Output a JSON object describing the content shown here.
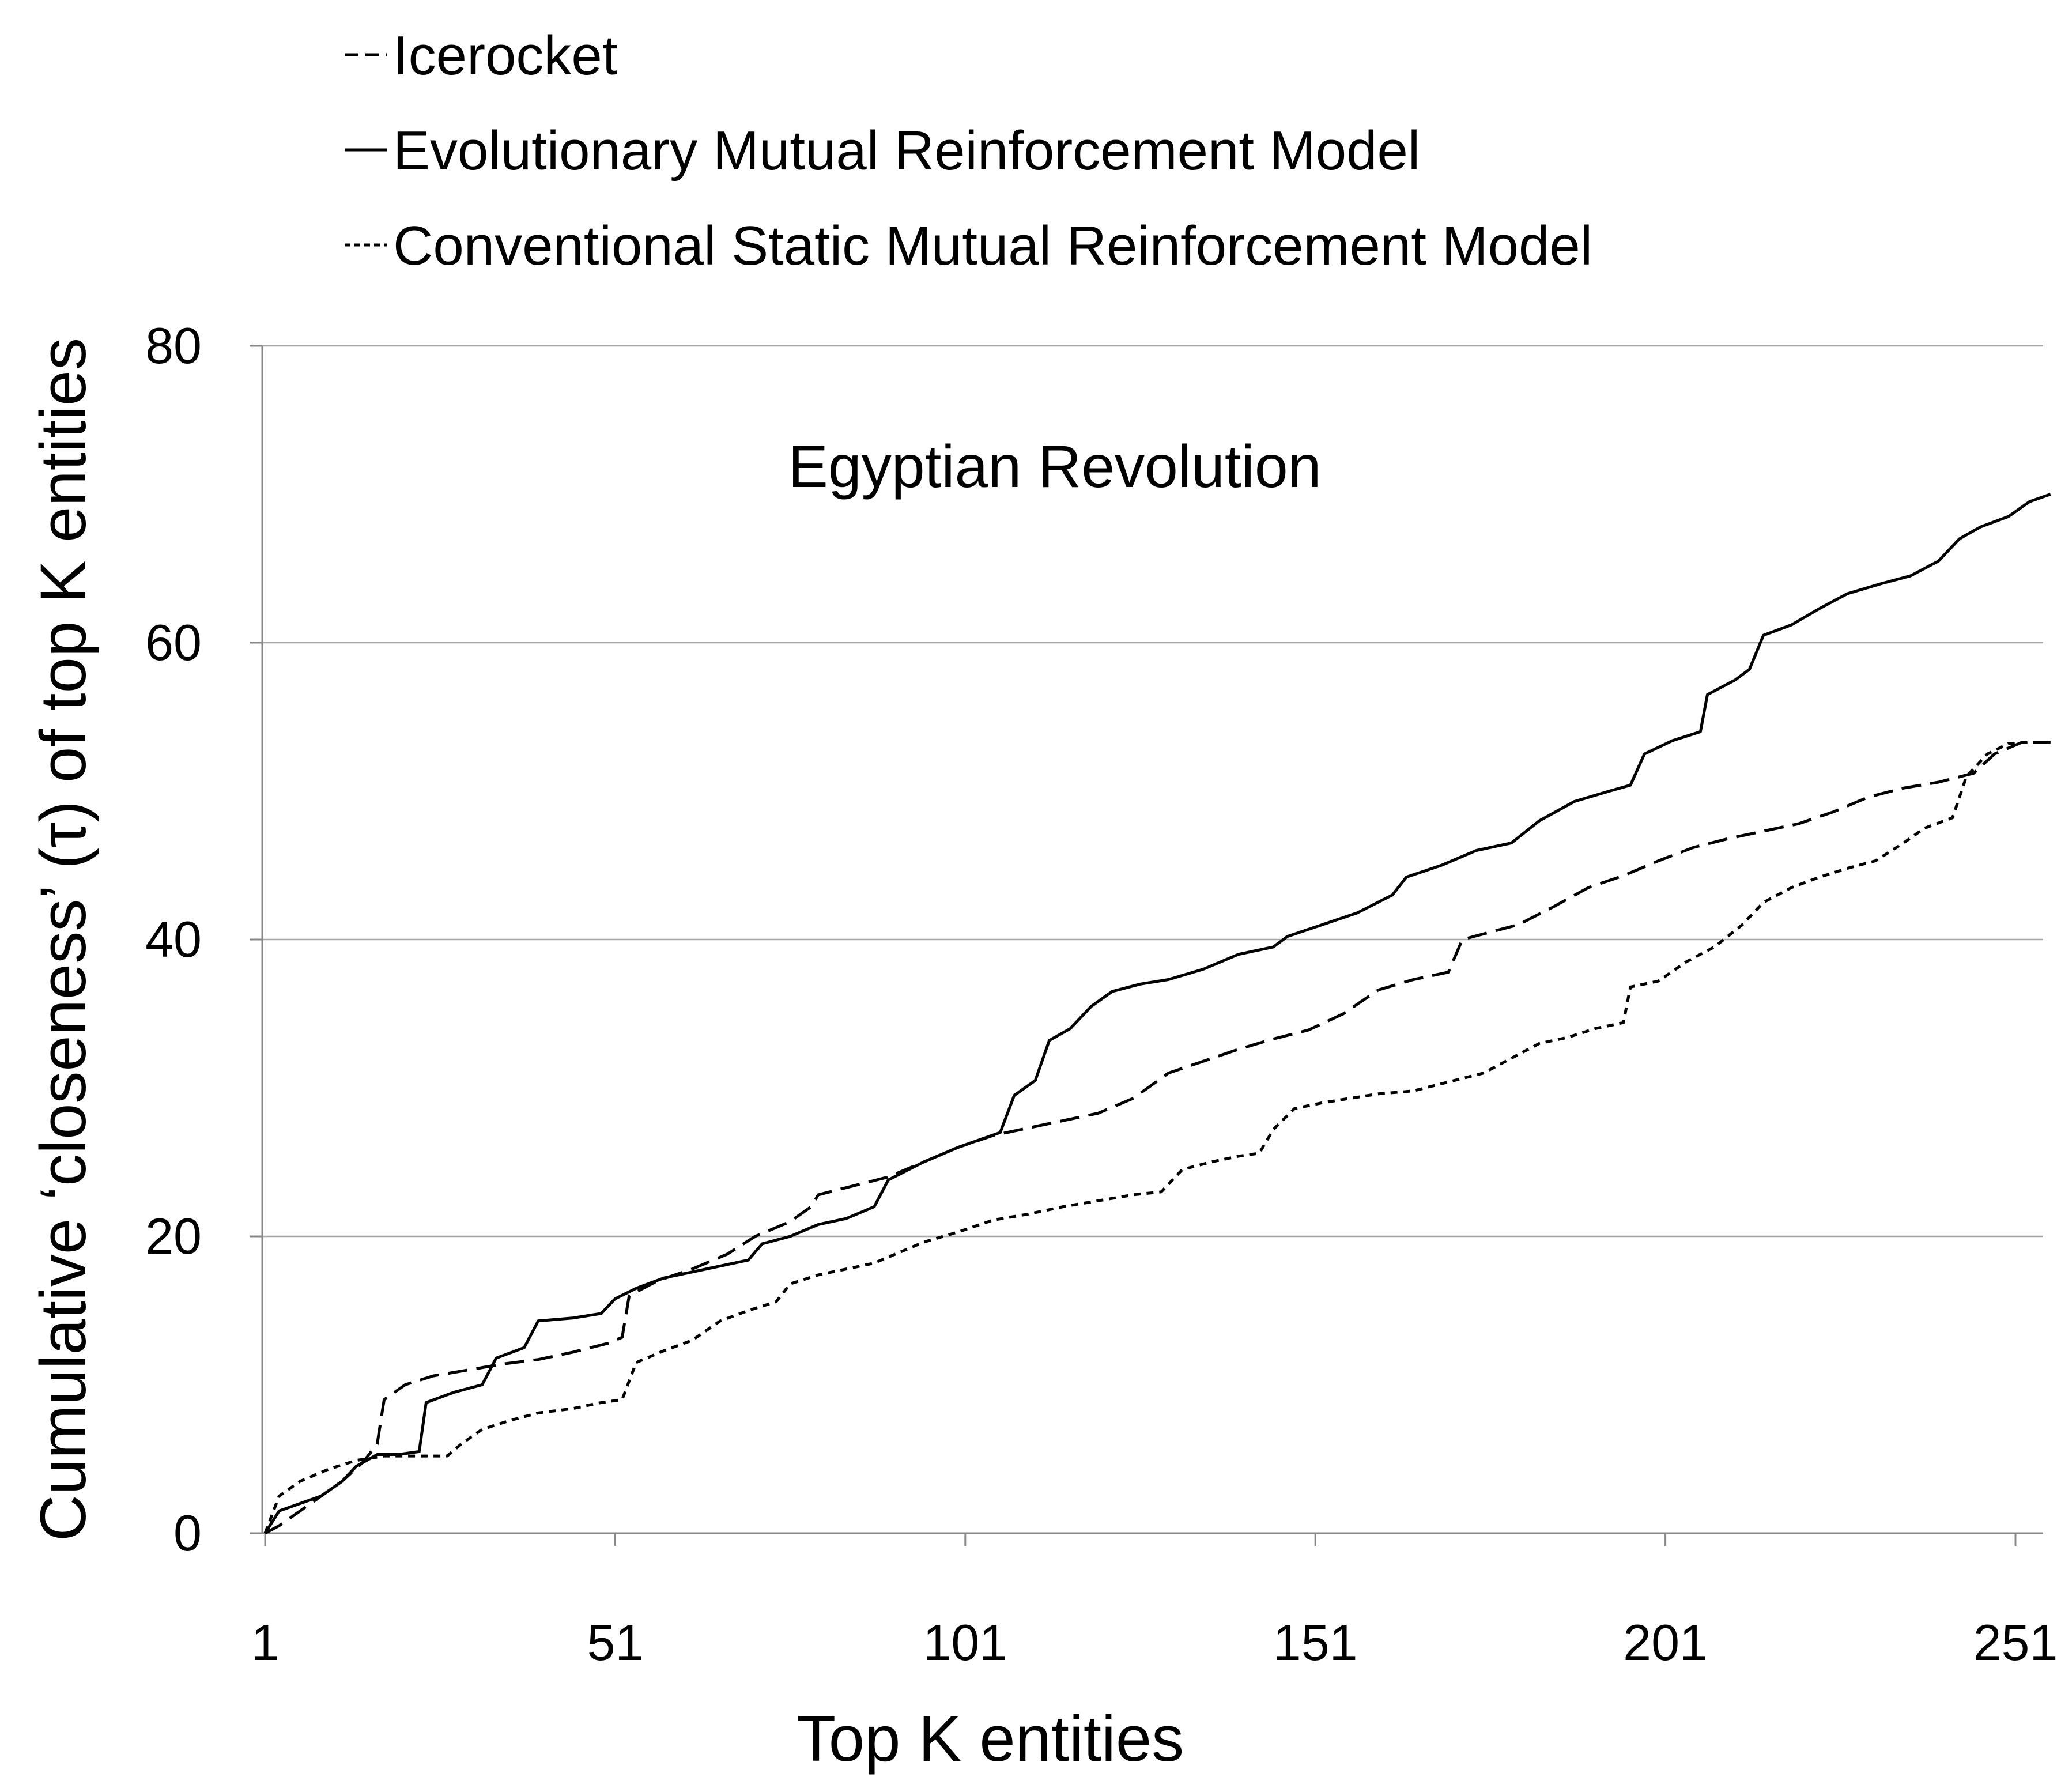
{
  "chart_data": {
    "type": "line",
    "title": "Egyptian Revolution",
    "xlabel": "Top K entities",
    "ylabel": "Cumulative ‘closeness’ (τ) of top K entities",
    "xlim": [
      1,
      256
    ],
    "ylim": [
      0,
      80
    ],
    "x_ticks": [
      "1",
      "51",
      "101",
      "151",
      "201",
      "251"
    ],
    "y_ticks": [
      "0",
      "20",
      "40",
      "60",
      "80"
    ],
    "grid": "horizontal",
    "legend_position": "top",
    "series": [
      {
        "name": "Icerocket",
        "style": "dashed",
        "color": "#000000",
        "points": [
          [
            1,
            0
          ],
          [
            3,
            0.5
          ],
          [
            6,
            1.5
          ],
          [
            9,
            2.5
          ],
          [
            12,
            3.5
          ],
          [
            15,
            4.8
          ],
          [
            17,
            6.0
          ],
          [
            18,
            9.0
          ],
          [
            21,
            10.0
          ],
          [
            25,
            10.6
          ],
          [
            30,
            11.0
          ],
          [
            35,
            11.4
          ],
          [
            40,
            11.7
          ],
          [
            45,
            12.2
          ],
          [
            50,
            12.8
          ],
          [
            52,
            13.2
          ],
          [
            53,
            16.0
          ],
          [
            57,
            17.0
          ],
          [
            62,
            17.8
          ],
          [
            67,
            18.8
          ],
          [
            71,
            20.0
          ],
          [
            76,
            21.0
          ],
          [
            79,
            22.0
          ],
          [
            80,
            22.8
          ],
          [
            85,
            23.4
          ],
          [
            90,
            24.0
          ],
          [
            95,
            25.0
          ],
          [
            100,
            26.0
          ],
          [
            105,
            26.8
          ],
          [
            110,
            27.3
          ],
          [
            115,
            27.8
          ],
          [
            120,
            28.3
          ],
          [
            125,
            29.3
          ],
          [
            130,
            31.0
          ],
          [
            135,
            31.8
          ],
          [
            140,
            32.6
          ],
          [
            145,
            33.3
          ],
          [
            150,
            33.9
          ],
          [
            155,
            35.0
          ],
          [
            160,
            36.6
          ],
          [
            165,
            37.3
          ],
          [
            170,
            37.8
          ],
          [
            172,
            40.0
          ],
          [
            180,
            41.0
          ],
          [
            185,
            42.2
          ],
          [
            190,
            43.5
          ],
          [
            195,
            44.3
          ],
          [
            200,
            45.3
          ],
          [
            205,
            46.2
          ],
          [
            210,
            46.8
          ],
          [
            215,
            47.3
          ],
          [
            220,
            47.8
          ],
          [
            225,
            48.6
          ],
          [
            230,
            49.6
          ],
          [
            235,
            50.2
          ],
          [
            240,
            50.6
          ],
          [
            245,
            51.2
          ],
          [
            248,
            52.5
          ],
          [
            252,
            53.3
          ],
          [
            256,
            53.3
          ]
        ]
      },
      {
        "name": "Evolutionary Mutual Reinforcement Model",
        "style": "solid",
        "color": "#000000",
        "points": [
          [
            1,
            0
          ],
          [
            3,
            1.5
          ],
          [
            6,
            2.0
          ],
          [
            9,
            2.5
          ],
          [
            12,
            3.5
          ],
          [
            14,
            4.5
          ],
          [
            17,
            5.3
          ],
          [
            20,
            5.3
          ],
          [
            23,
            5.5
          ],
          [
            24,
            8.8
          ],
          [
            28,
            9.5
          ],
          [
            32,
            10.0
          ],
          [
            34,
            11.8
          ],
          [
            38,
            12.5
          ],
          [
            40,
            14.3
          ],
          [
            45,
            14.5
          ],
          [
            49,
            14.8
          ],
          [
            51,
            15.8
          ],
          [
            54,
            16.5
          ],
          [
            58,
            17.2
          ],
          [
            62,
            17.6
          ],
          [
            66,
            18.0
          ],
          [
            70,
            18.4
          ],
          [
            72,
            19.5
          ],
          [
            76,
            20.0
          ],
          [
            80,
            20.8
          ],
          [
            84,
            21.2
          ],
          [
            88,
            22.0
          ],
          [
            90,
            23.8
          ],
          [
            95,
            25.0
          ],
          [
            100,
            26.0
          ],
          [
            103,
            26.5
          ],
          [
            106,
            27.0
          ],
          [
            108,
            29.5
          ],
          [
            111,
            30.5
          ],
          [
            113,
            33.2
          ],
          [
            116,
            34.0
          ],
          [
            119,
            35.5
          ],
          [
            122,
            36.5
          ],
          [
            126,
            37.0
          ],
          [
            130,
            37.3
          ],
          [
            135,
            38.0
          ],
          [
            140,
            39.0
          ],
          [
            145,
            39.5
          ],
          [
            147,
            40.2
          ],
          [
            152,
            41.0
          ],
          [
            157,
            41.8
          ],
          [
            162,
            43.0
          ],
          [
            164,
            44.2
          ],
          [
            169,
            45.0
          ],
          [
            174,
            46.0
          ],
          [
            179,
            46.5
          ],
          [
            183,
            48.0
          ],
          [
            188,
            49.3
          ],
          [
            193,
            50.0
          ],
          [
            196,
            50.4
          ],
          [
            198,
            52.5
          ],
          [
            202,
            53.4
          ],
          [
            206,
            54.0
          ],
          [
            207,
            56.5
          ],
          [
            211,
            57.5
          ],
          [
            213,
            58.2
          ],
          [
            215,
            60.5
          ],
          [
            219,
            61.2
          ],
          [
            223,
            62.3
          ],
          [
            227,
            63.3
          ],
          [
            232,
            64.0
          ],
          [
            236,
            64.5
          ],
          [
            240,
            65.5
          ],
          [
            243,
            67.0
          ],
          [
            246,
            67.8
          ],
          [
            250,
            68.5
          ],
          [
            253,
            69.5
          ],
          [
            256,
            70.0
          ]
        ]
      },
      {
        "name": "Conventional Static Mutual Reinforcement Model",
        "style": "dotted",
        "color": "#000000",
        "points": [
          [
            1,
            0
          ],
          [
            3,
            2.5
          ],
          [
            6,
            3.5
          ],
          [
            10,
            4.3
          ],
          [
            14,
            4.9
          ],
          [
            18,
            5.2
          ],
          [
            22,
            5.2
          ],
          [
            27,
            5.2
          ],
          [
            29,
            6.0
          ],
          [
            32,
            7.0
          ],
          [
            36,
            7.6
          ],
          [
            40,
            8.1
          ],
          [
            45,
            8.4
          ],
          [
            49,
            8.8
          ],
          [
            52,
            9.0
          ],
          [
            54,
            11.5
          ],
          [
            58,
            12.3
          ],
          [
            62,
            13.0
          ],
          [
            66,
            14.3
          ],
          [
            70,
            15.0
          ],
          [
            74,
            15.6
          ],
          [
            76,
            16.8
          ],
          [
            80,
            17.4
          ],
          [
            84,
            17.8
          ],
          [
            88,
            18.2
          ],
          [
            92,
            19.0
          ],
          [
            95,
            19.6
          ],
          [
            100,
            20.3
          ],
          [
            105,
            21.1
          ],
          [
            110,
            21.5
          ],
          [
            115,
            22.0
          ],
          [
            120,
            22.4
          ],
          [
            125,
            22.8
          ],
          [
            129,
            23.0
          ],
          [
            132,
            24.5
          ],
          [
            136,
            25.0
          ],
          [
            140,
            25.4
          ],
          [
            143,
            25.6
          ],
          [
            145,
            27.2
          ],
          [
            148,
            28.6
          ],
          [
            152,
            29.0
          ],
          [
            156,
            29.3
          ],
          [
            160,
            29.6
          ],
          [
            165,
            29.8
          ],
          [
            170,
            30.4
          ],
          [
            175,
            31.0
          ],
          [
            179,
            32.0
          ],
          [
            183,
            33.0
          ],
          [
            187,
            33.4
          ],
          [
            191,
            34.0
          ],
          [
            195,
            34.4
          ],
          [
            196,
            36.8
          ],
          [
            200,
            37.2
          ],
          [
            204,
            38.5
          ],
          [
            208,
            39.5
          ],
          [
            212,
            41.0
          ],
          [
            215,
            42.5
          ],
          [
            219,
            43.5
          ],
          [
            223,
            44.2
          ],
          [
            227,
            44.8
          ],
          [
            231,
            45.3
          ],
          [
            235,
            46.5
          ],
          [
            238,
            47.5
          ],
          [
            242,
            48.2
          ],
          [
            244,
            51.0
          ],
          [
            247,
            52.5
          ],
          [
            250,
            53.2
          ],
          [
            253,
            53.3
          ],
          [
            256,
            53.3
          ]
        ]
      }
    ]
  }
}
